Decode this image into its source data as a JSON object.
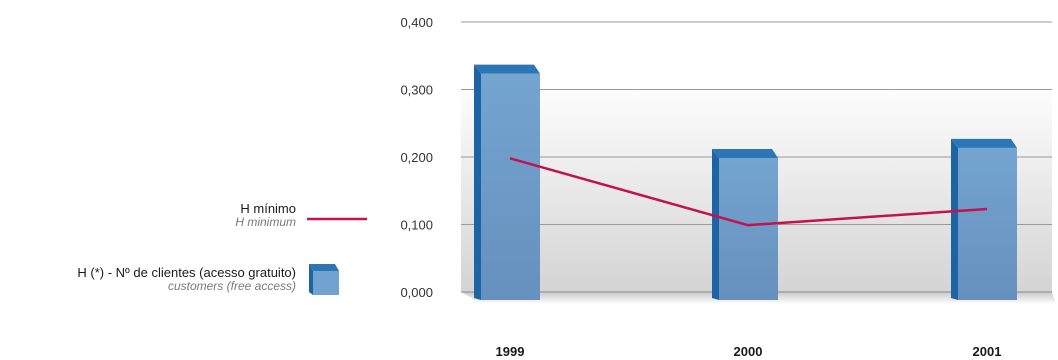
{
  "chart_data": {
    "type": "bar",
    "categories": [
      "1999",
      "2000",
      "2001"
    ],
    "ylim": [
      0,
      0.4
    ],
    "yticks": [
      0,
      0.1,
      0.2,
      0.3,
      0.4
    ],
    "ytick_labels": [
      "0,000",
      "0,100",
      "0,200",
      "0,300",
      "0,400"
    ],
    "series": [
      {
        "name": "H (*) - Nº de clientes (acesso gratuito)",
        "name_en": "customers (free access)",
        "kind": "bar",
        "color": "#6a9ccb",
        "values": [
          0.325,
          0.2,
          0.215
        ]
      },
      {
        "name": "H mínimo",
        "name_en": "H minimum",
        "kind": "line",
        "color": "#c4114f",
        "values": [
          0.198,
          0.099,
          0.123
        ]
      }
    ],
    "grid": true,
    "legend": "left"
  }
}
